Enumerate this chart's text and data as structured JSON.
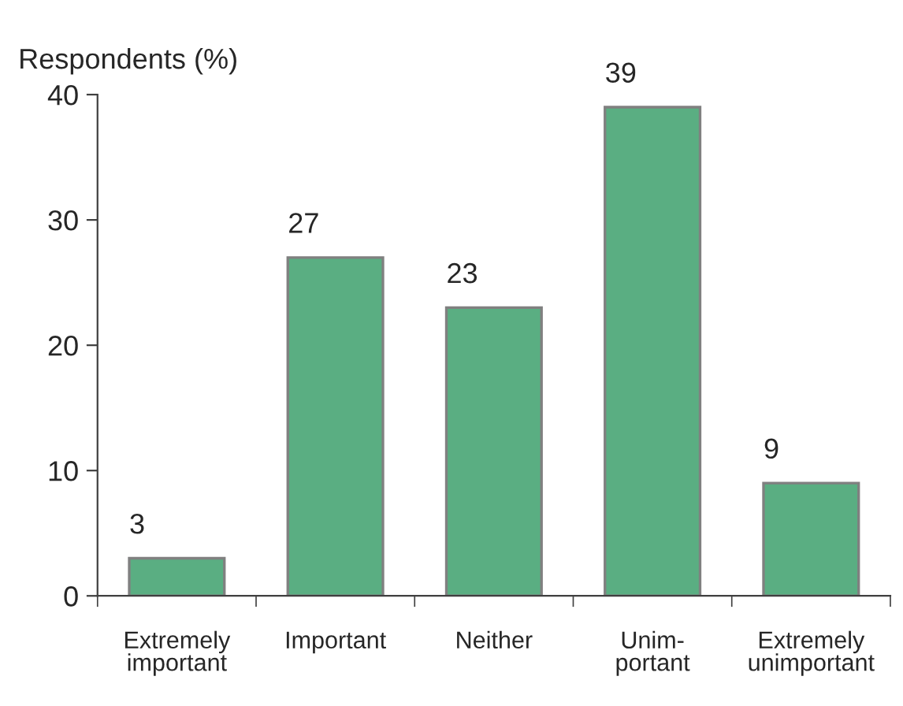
{
  "chart_data": {
    "type": "bar",
    "ylabel": "Respondents (%)",
    "categories": [
      "Extremely\nimportant",
      "Important",
      "Neither",
      "Unim-\nportant",
      "Extremely\nunimportant"
    ],
    "values": [
      3,
      27,
      23,
      39,
      9
    ],
    "color": "#5aae82",
    "ylim": [
      0,
      40
    ],
    "yticks": [
      0,
      10,
      20,
      30,
      40
    ],
    "grid": false,
    "data_labels": true
  }
}
